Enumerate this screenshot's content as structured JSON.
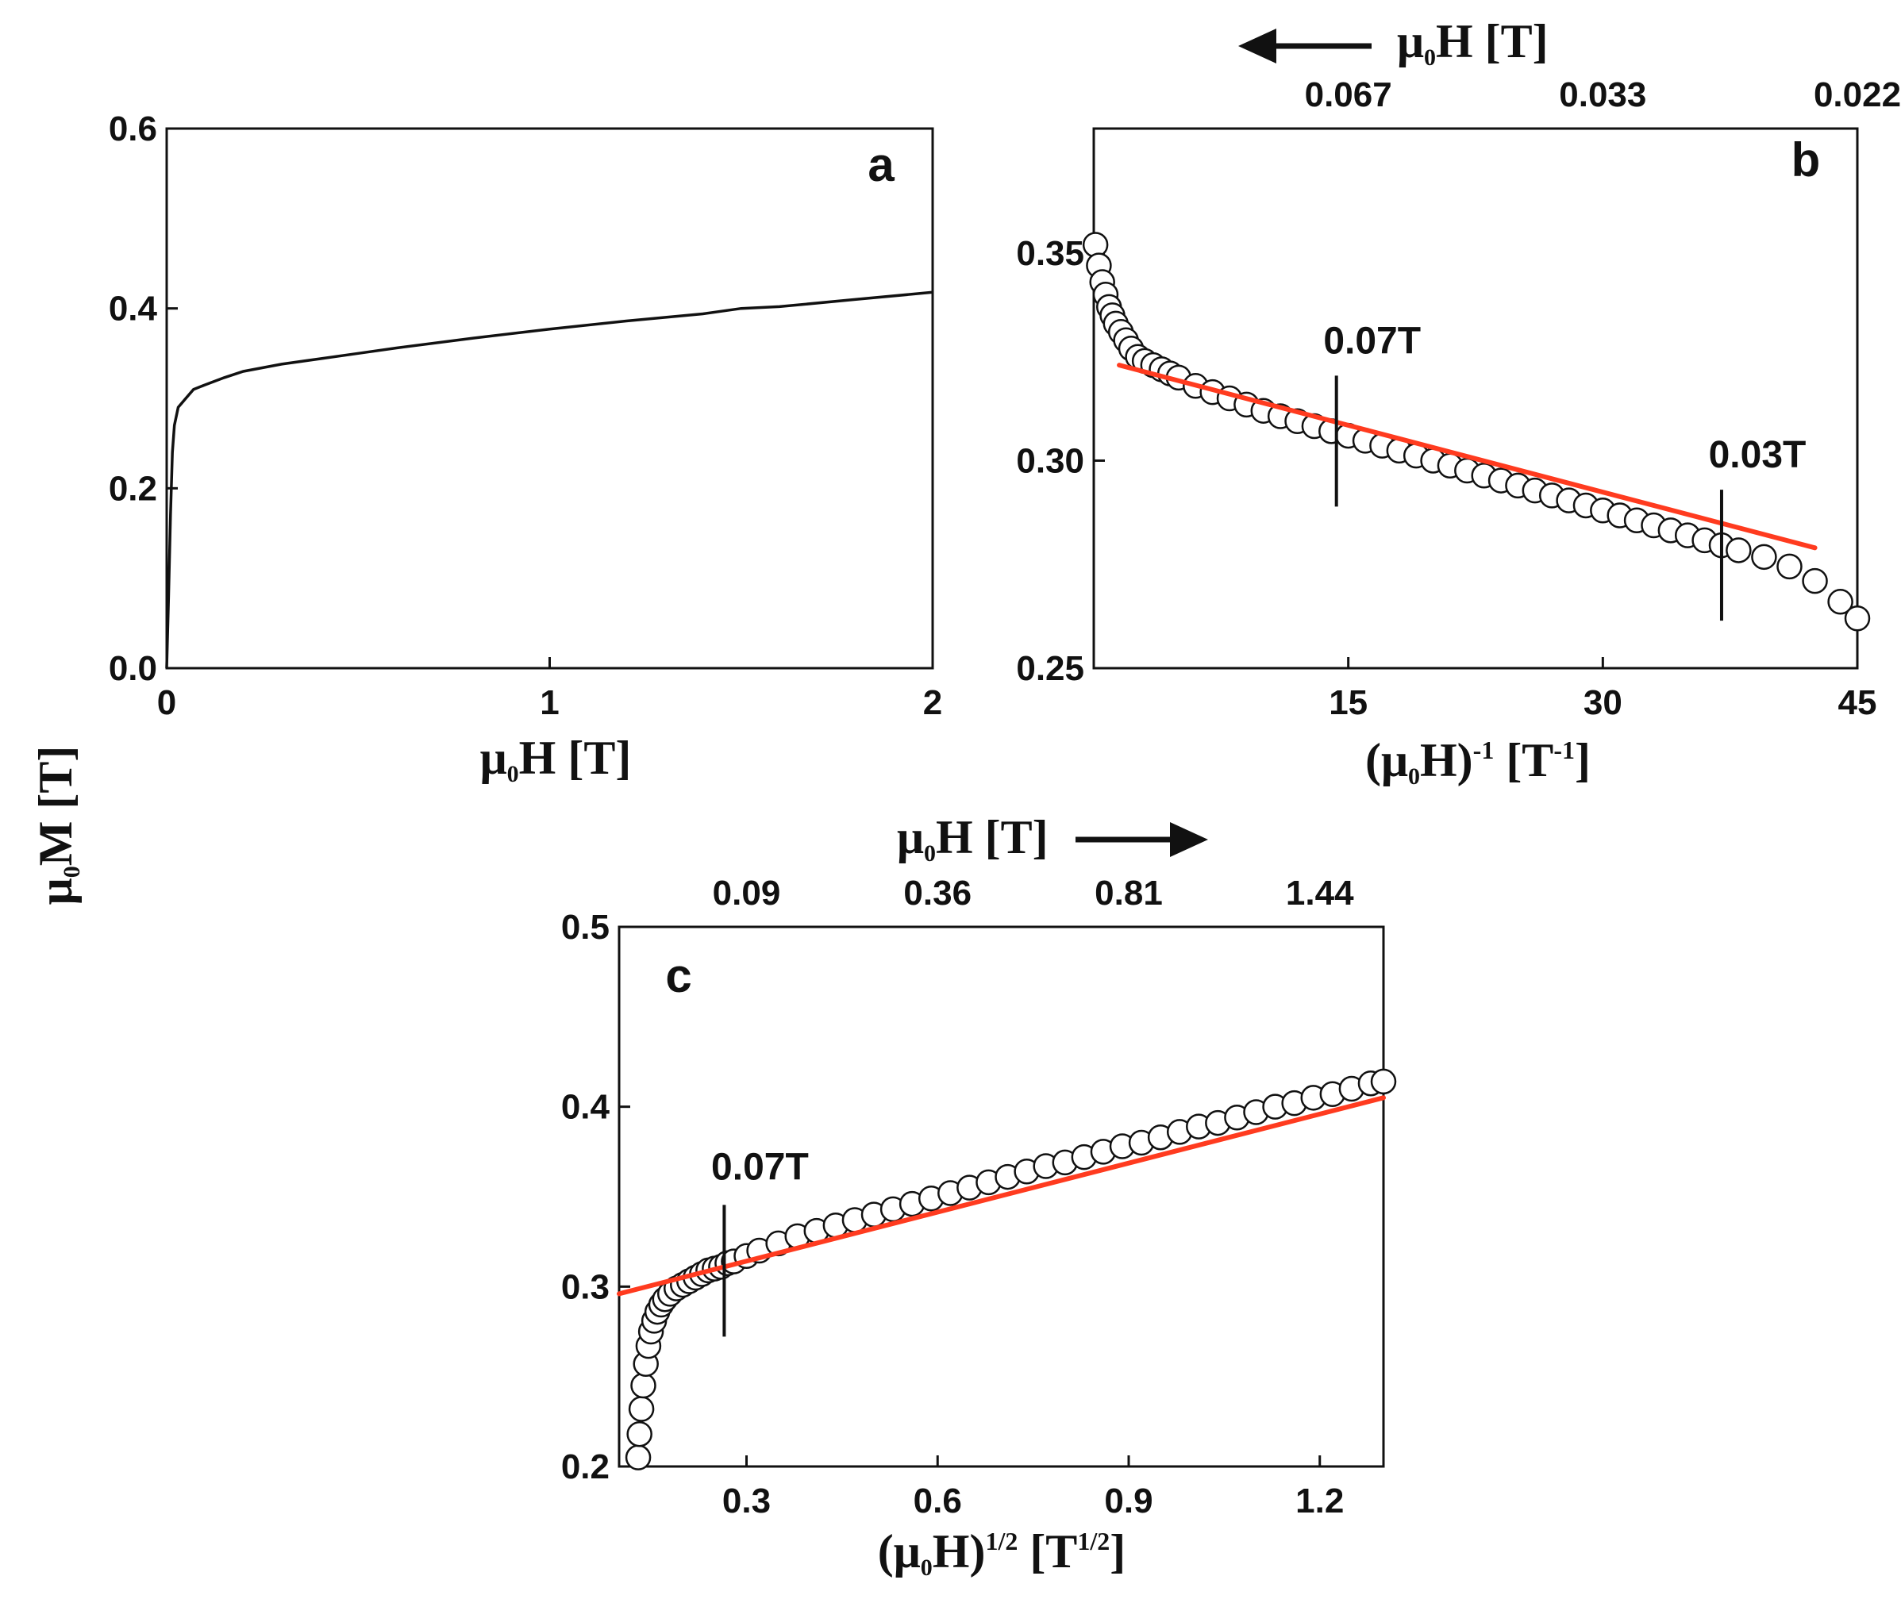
{
  "figure": {
    "shared_ylabel": {
      "main": "μ",
      "sub": "0",
      "rest": "M [T]"
    }
  },
  "chart_data": [
    {
      "panel": "a",
      "type": "line",
      "xlabel": {
        "main": "μ",
        "sub": "0",
        "rest": "H [T]"
      },
      "xlim": [
        0,
        2
      ],
      "ylim": [
        0,
        0.6
      ],
      "xticks": [
        "0",
        "1",
        "2"
      ],
      "yticks": [
        "0.0",
        "0.2",
        "0.4",
        "0.6"
      ],
      "x": [
        0,
        0.005,
        0.01,
        0.015,
        0.02,
        0.03,
        0.05,
        0.07,
        0.1,
        0.15,
        0.2,
        0.3,
        0.4,
        0.5,
        0.6,
        0.8,
        1.0,
        1.2,
        1.4,
        1.5,
        1.6,
        1.8,
        2.0
      ],
      "y": [
        0.0,
        0.08,
        0.17,
        0.24,
        0.27,
        0.29,
        0.3,
        0.31,
        0.315,
        0.323,
        0.33,
        0.338,
        0.344,
        0.35,
        0.356,
        0.367,
        0.377,
        0.386,
        0.394,
        0.4,
        0.402,
        0.41,
        0.418
      ]
    },
    {
      "panel": "b",
      "type": "scatter",
      "xlabel": {
        "main": "(μ",
        "sub": "0",
        "mid": "H)",
        "sup": "-1",
        "rest": " [T",
        "sup2": "-1",
        "end": "]"
      },
      "top_label": {
        "main": "μ",
        "sub": "0",
        "rest": "H [T]"
      },
      "top_ticks": [
        "0.067",
        "0.033",
        "0.022"
      ],
      "top_tick_positions": [
        15,
        30,
        45
      ],
      "xlim": [
        0,
        45
      ],
      "ylim": [
        0.25,
        0.38
      ],
      "xticks": [
        "15",
        "30",
        "45"
      ],
      "xtick_values": [
        15,
        30,
        45
      ],
      "yticks": [
        "0.25",
        "0.30",
        "0.35"
      ],
      "ytick_values": [
        0.25,
        0.3,
        0.35
      ],
      "x": [
        0.1,
        0.3,
        0.5,
        0.7,
        0.9,
        1.1,
        1.3,
        1.6,
        1.9,
        2.2,
        2.6,
        3.0,
        3.5,
        4.0,
        4.5,
        5,
        6,
        7,
        8,
        9,
        10,
        11,
        12,
        13,
        14,
        15,
        16,
        17,
        18,
        19,
        20,
        21,
        22,
        23,
        24,
        25,
        26,
        27,
        28,
        29,
        30,
        31,
        32,
        33,
        34,
        35,
        36,
        37,
        38,
        39.5,
        41,
        42.5,
        44,
        45
      ],
      "y": [
        0.352,
        0.347,
        0.343,
        0.34,
        0.337,
        0.335,
        0.333,
        0.331,
        0.329,
        0.327,
        0.325,
        0.324,
        0.323,
        0.322,
        0.321,
        0.32,
        0.318,
        0.3165,
        0.315,
        0.3135,
        0.312,
        0.3107,
        0.3095,
        0.3083,
        0.3071,
        0.306,
        0.3048,
        0.3036,
        0.3024,
        0.3012,
        0.3,
        0.2988,
        0.2976,
        0.2964,
        0.2952,
        0.294,
        0.2928,
        0.2916,
        0.2904,
        0.2892,
        0.288,
        0.2868,
        0.2856,
        0.2844,
        0.2832,
        0.282,
        0.2808,
        0.2796,
        0.2784,
        0.2768,
        0.2745,
        0.271,
        0.266,
        0.262
      ],
      "fit_line": {
        "x": [
          1.5,
          42.5
        ],
        "y": [
          0.323,
          0.279
        ],
        "color": "#ff3b1f"
      },
      "annotations": [
        {
          "label": "0.07T",
          "x": 14.3
        },
        {
          "label": "0.03T",
          "x": 37.0
        }
      ]
    },
    {
      "panel": "c",
      "type": "scatter",
      "xlabel": {
        "main": "(μ",
        "sub": "0",
        "mid": "H)",
        "sup": "1/2",
        "rest": " [T",
        "sup2": "1/2",
        "end": "]"
      },
      "top_label": {
        "main": "μ",
        "sub": "0",
        "rest": "H [T]"
      },
      "top_ticks": [
        "0.09",
        "0.36",
        "0.81",
        "1.44"
      ],
      "top_tick_positions": [
        0.3,
        0.6,
        0.9,
        1.2
      ],
      "xlim": [
        0.1,
        1.3
      ],
      "ylim": [
        0.2,
        0.5
      ],
      "xticks": [
        "0.3",
        "0.6",
        "0.9",
        "1.2"
      ],
      "xtick_values": [
        0.3,
        0.6,
        0.9,
        1.2
      ],
      "yticks": [
        "0.2",
        "0.3",
        "0.4",
        "0.5"
      ],
      "ytick_values": [
        0.2,
        0.3,
        0.4,
        0.5
      ],
      "x": [
        0.13,
        0.132,
        0.135,
        0.138,
        0.142,
        0.146,
        0.15,
        0.155,
        0.16,
        0.166,
        0.172,
        0.18,
        0.19,
        0.2,
        0.21,
        0.22,
        0.23,
        0.24,
        0.25,
        0.26,
        0.27,
        0.28,
        0.3,
        0.32,
        0.35,
        0.38,
        0.41,
        0.44,
        0.47,
        0.5,
        0.53,
        0.56,
        0.59,
        0.62,
        0.65,
        0.68,
        0.71,
        0.74,
        0.77,
        0.8,
        0.83,
        0.86,
        0.89,
        0.92,
        0.95,
        0.98,
        1.01,
        1.04,
        1.07,
        1.1,
        1.13,
        1.16,
        1.19,
        1.22,
        1.25,
        1.28,
        1.3
      ],
      "y": [
        0.205,
        0.218,
        0.232,
        0.245,
        0.257,
        0.267,
        0.275,
        0.281,
        0.286,
        0.29,
        0.293,
        0.296,
        0.299,
        0.301,
        0.303,
        0.305,
        0.307,
        0.309,
        0.31,
        0.311,
        0.313,
        0.314,
        0.317,
        0.32,
        0.324,
        0.328,
        0.331,
        0.334,
        0.337,
        0.34,
        0.343,
        0.346,
        0.349,
        0.352,
        0.355,
        0.358,
        0.361,
        0.364,
        0.367,
        0.369,
        0.372,
        0.375,
        0.378,
        0.38,
        0.383,
        0.386,
        0.389,
        0.391,
        0.394,
        0.397,
        0.4,
        0.402,
        0.405,
        0.407,
        0.41,
        0.413,
        0.414
      ],
      "fit_line": {
        "x": [
          0.1,
          1.3
        ],
        "y": [
          0.296,
          0.405
        ],
        "color": "#ff3b1f"
      },
      "annotations": [
        {
          "label": "0.07T",
          "x": 0.265
        }
      ]
    }
  ],
  "panel_letters": {
    "a": "a",
    "b": "b",
    "c": "c"
  }
}
